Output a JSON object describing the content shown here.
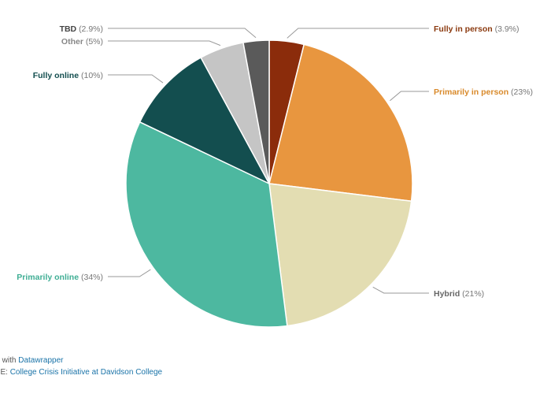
{
  "chart_data": {
    "type": "pie",
    "slices": [
      {
        "name": "Fully in person",
        "value": 3.9,
        "label": "(3.9%)",
        "color": "#8b2c0b",
        "label_color": "#8b3a0f"
      },
      {
        "name": "Primarily in person",
        "value": 23,
        "label": "(23%)",
        "color": "#e8963f",
        "label_color": "#d98a2b"
      },
      {
        "name": "Hybrid",
        "value": 21,
        "label": "(21%)",
        "color": "#e3ddb2",
        "label_color": "#666666"
      },
      {
        "name": "Primarily online",
        "value": 34,
        "label": "(34%)",
        "color": "#4db8a0",
        "label_color": "#3fae94"
      },
      {
        "name": "Fully online",
        "value": 10,
        "label": "(10%)",
        "color": "#134e4f",
        "label_color": "#134e4f"
      },
      {
        "name": "Other",
        "value": 5,
        "label": "(5%)",
        "color": "#c5c5c5",
        "label_color": "#888888"
      },
      {
        "name": "TBD",
        "value": 2.9,
        "label": "(2.9%)",
        "color": "#5a5a5a",
        "label_color": "#444444"
      }
    ]
  },
  "footer": {
    "credit_prefix": "ted with",
    "credit_link": "Datawrapper",
    "source_prefix": "RCE:",
    "source_link": "College Crisis Initiative at Davidson College"
  }
}
